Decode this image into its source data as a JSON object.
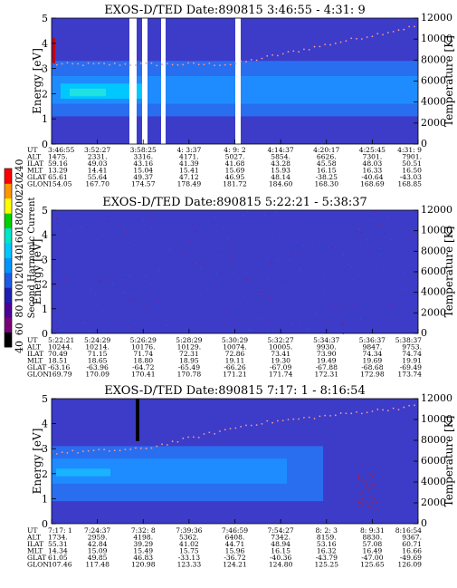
{
  "colorbar": {
    "label": "Second Harmonic Current",
    "ticks": [
      "40",
      "60",
      "80",
      "100",
      "120",
      "140",
      "160",
      "180",
      "200",
      "220",
      "240"
    ],
    "colors": [
      "#000000",
      "#7a007a",
      "#4b0096",
      "#1e1eb4",
      "#1e5ae6",
      "#0096ff",
      "#00c8ff",
      "#00e6c8",
      "#00d200",
      "#ffff00",
      "#ff9600",
      "#ff0000"
    ]
  },
  "chart_data": [
    {
      "type": "heatmap",
      "title": "EXOS-D/TED   Date:890815  3:46:55 - 4:31: 9",
      "ylabel": "Energy [eV]",
      "y2label": "Temperature [K]",
      "ylim": [
        0,
        5
      ],
      "y2lim": [
        0,
        12000
      ],
      "yticks": [
        "0",
        "1",
        "2",
        "3",
        "4",
        "5"
      ],
      "y2ticks": [
        "0",
        "2000",
        "4000",
        "6000",
        "8000",
        "10000",
        "12000"
      ],
      "row_labels": [
        "UT",
        "ALT",
        "ILAT",
        "MLT",
        "GLAT",
        "GLON"
      ],
      "columns": [
        [
          "3:46:55",
          "1475.",
          "59.16",
          "13.29",
          "65.61",
          "154.05"
        ],
        [
          "3:52:27",
          "2331.",
          "49.03",
          "14.41",
          "55.64",
          "167.70"
        ],
        [
          "3:58:25",
          "3316.",
          "43.16",
          "15.04",
          "49.37",
          "174.57"
        ],
        [
          "4: 3:37",
          "4171.",
          "41.39",
          "15.41",
          "47.12",
          "178.49"
        ],
        [
          "4: 9: 2",
          "5027.",
          "41.68",
          "15.69",
          "46.95",
          "181.72"
        ],
        [
          "4:14:37",
          "5854.",
          "43.28",
          "15.93",
          "48.14",
          "184.60"
        ],
        [
          "4:20:17",
          "6626.",
          "45.58",
          "16.15",
          "-38.25",
          "168.30"
        ],
        [
          "4:25:45",
          "7301.",
          "48.03",
          "16.33",
          "-40.64",
          "168.69"
        ],
        [
          "4:31: 9",
          "7901.",
          "50.51",
          "16.50",
          "-43.03",
          "168.85"
        ]
      ]
    },
    {
      "type": "heatmap",
      "title": "EXOS-D/TED   Date:890815  5:22:21 - 5:38:37",
      "ylabel": "Energy [eV]",
      "y2label": "Temperature [K]",
      "ylim": [
        0,
        5
      ],
      "y2lim": [
        0,
        12000
      ],
      "yticks": [
        "0",
        "1",
        "2",
        "3",
        "4",
        "5"
      ],
      "y2ticks": [
        "0",
        "2000",
        "4000",
        "6000",
        "8000",
        "10000",
        "12000"
      ],
      "row_labels": [
        "UT",
        "ALT",
        "ILAT",
        "MLT",
        "GLAT",
        "GLON"
      ],
      "columns": [
        [
          "5:22:21",
          "10244.",
          "70.49",
          "18.51",
          "-63.16",
          "169.79"
        ],
        [
          "5:24:29",
          "10214.",
          "71.15",
          "18.65",
          "-63.96",
          "170.09"
        ],
        [
          "5:26:29",
          "10176.",
          "71.74",
          "18.80",
          "-64.72",
          "170.41"
        ],
        [
          "5:28:29",
          "10129.",
          "72.31",
          "18.95",
          "-65.49",
          "170.78"
        ],
        [
          "5:30:29",
          "10074.",
          "72.86",
          "19.11",
          "-66.26",
          "171.21"
        ],
        [
          "5:32:27",
          "10005.",
          "73.41",
          "19.30",
          "-67.09",
          "171.74"
        ],
        [
          "5:34:37",
          "9930.",
          "73.90",
          "19.49",
          "-67.88",
          "172.31"
        ],
        [
          "5:36:37",
          "9847.",
          "74.34",
          "19.69",
          "-68.68",
          "172.98"
        ],
        [
          "5:38:37",
          "9753.",
          "74.74",
          "19.91",
          "-69.49",
          "173.74"
        ]
      ]
    },
    {
      "type": "heatmap",
      "title": "EXOS-D/TED   Date:890815  7:17: 1 - 8:16:54",
      "ylabel": "Energy [eV]",
      "y2label": "Temperature [K]",
      "ylim": [
        0,
        5
      ],
      "y2lim": [
        0,
        12000
      ],
      "yticks": [
        "0",
        "1",
        "2",
        "3",
        "4",
        "5"
      ],
      "y2ticks": [
        "0",
        "2000",
        "4000",
        "6000",
        "8000",
        "10000",
        "12000"
      ],
      "row_labels": [
        "UT",
        "ALT",
        "ILAT",
        "MLT",
        "GLAT",
        "GLON"
      ],
      "columns": [
        [
          "7:17: 1",
          "1734.",
          "55.31",
          "14.34",
          "61.05",
          "107.46"
        ],
        [
          "7:24:37",
          "2959.",
          "42.84",
          "15.09",
          "49.85",
          "117.48"
        ],
        [
          "7:32: 8",
          "4198.",
          "39.29",
          "15.49",
          "46.83",
          "120.98"
        ],
        [
          "7:39:36",
          "5362.",
          "41.02",
          "15.75",
          "-33.13",
          "123.33"
        ],
        [
          "7:46:59",
          "6408.",
          "44.71",
          "15.96",
          "-36.72",
          "124.21"
        ],
        [
          "7:54:27",
          "7342.",
          "48.94",
          "16.15",
          "-40.36",
          "124.80"
        ],
        [
          "8: 2: 3",
          "8159.",
          "53.16",
          "16.32",
          "-43.79",
          "125.25"
        ],
        [
          "8: 9:31",
          "8830.",
          "57.08",
          "16.49",
          "-47.00",
          "125.65"
        ],
        [
          "8:16:54",
          "9367.",
          "60.71",
          "16.66",
          "-49.69",
          "126.09"
        ]
      ]
    }
  ]
}
